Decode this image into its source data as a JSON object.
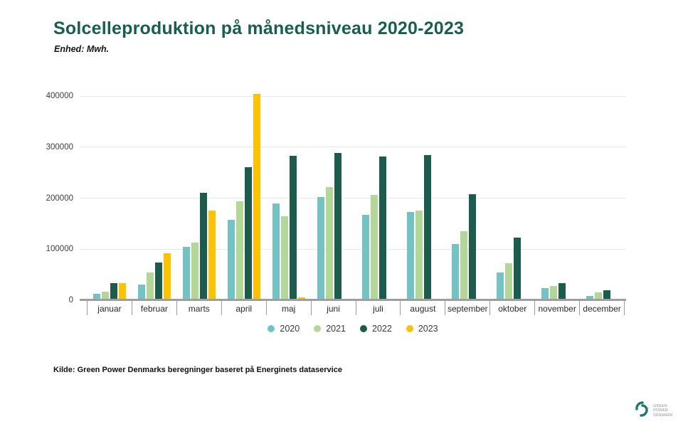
{
  "header": {
    "title": "Solcelleproduktion på månedsniveau 2020-2023",
    "subtitle": "Enhed: Mwh."
  },
  "footer": {
    "source": "Kilde: Green Power Denmarks beregninger baseret på Energinets dataservice",
    "logo_lines": [
      "GREEN",
      "POWER",
      "DENMARK"
    ],
    "logo_color": "#1d7a6e"
  },
  "colors": {
    "title": "#15604e",
    "gridline": "#e8e8e8",
    "axis": "#9e9e9e"
  },
  "chart_data": {
    "type": "bar",
    "title": "Solcelleproduktion på månedsniveau 2020-2023",
    "unit_label": "Enhed: Mwh.",
    "xlabel": "",
    "ylabel": "Mwh",
    "ylim": [
      0,
      400000
    ],
    "yticks": [
      0,
      100000,
      200000,
      300000,
      400000
    ],
    "grid": true,
    "legend_position": "bottom",
    "categories": [
      "januar",
      "februar",
      "marts",
      "april",
      "maj",
      "juni",
      "juli",
      "august",
      "september",
      "oktober",
      "november",
      "december"
    ],
    "series": [
      {
        "name": "2020",
        "color": "#74c3c4",
        "values": [
          12000,
          30000,
          104000,
          158000,
          190000,
          202000,
          167000,
          173000,
          110000,
          55000,
          24000,
          8000
        ]
      },
      {
        "name": "2021",
        "color": "#b2d797",
        "values": [
          17000,
          54000,
          113000,
          194000,
          165000,
          222000,
          206000,
          176000,
          135000,
          73000,
          28000,
          15000
        ]
      },
      {
        "name": "2022",
        "color": "#1b5c4c",
        "values": [
          34000,
          74000,
          211000,
          260000,
          283000,
          289000,
          282000,
          284000,
          207000,
          122000,
          33000,
          19000
        ]
      },
      {
        "name": "2023",
        "color": "#fdc303",
        "values": [
          34000,
          92000,
          176000,
          404000,
          5000,
          null,
          null,
          null,
          null,
          null,
          null,
          null
        ]
      }
    ]
  }
}
